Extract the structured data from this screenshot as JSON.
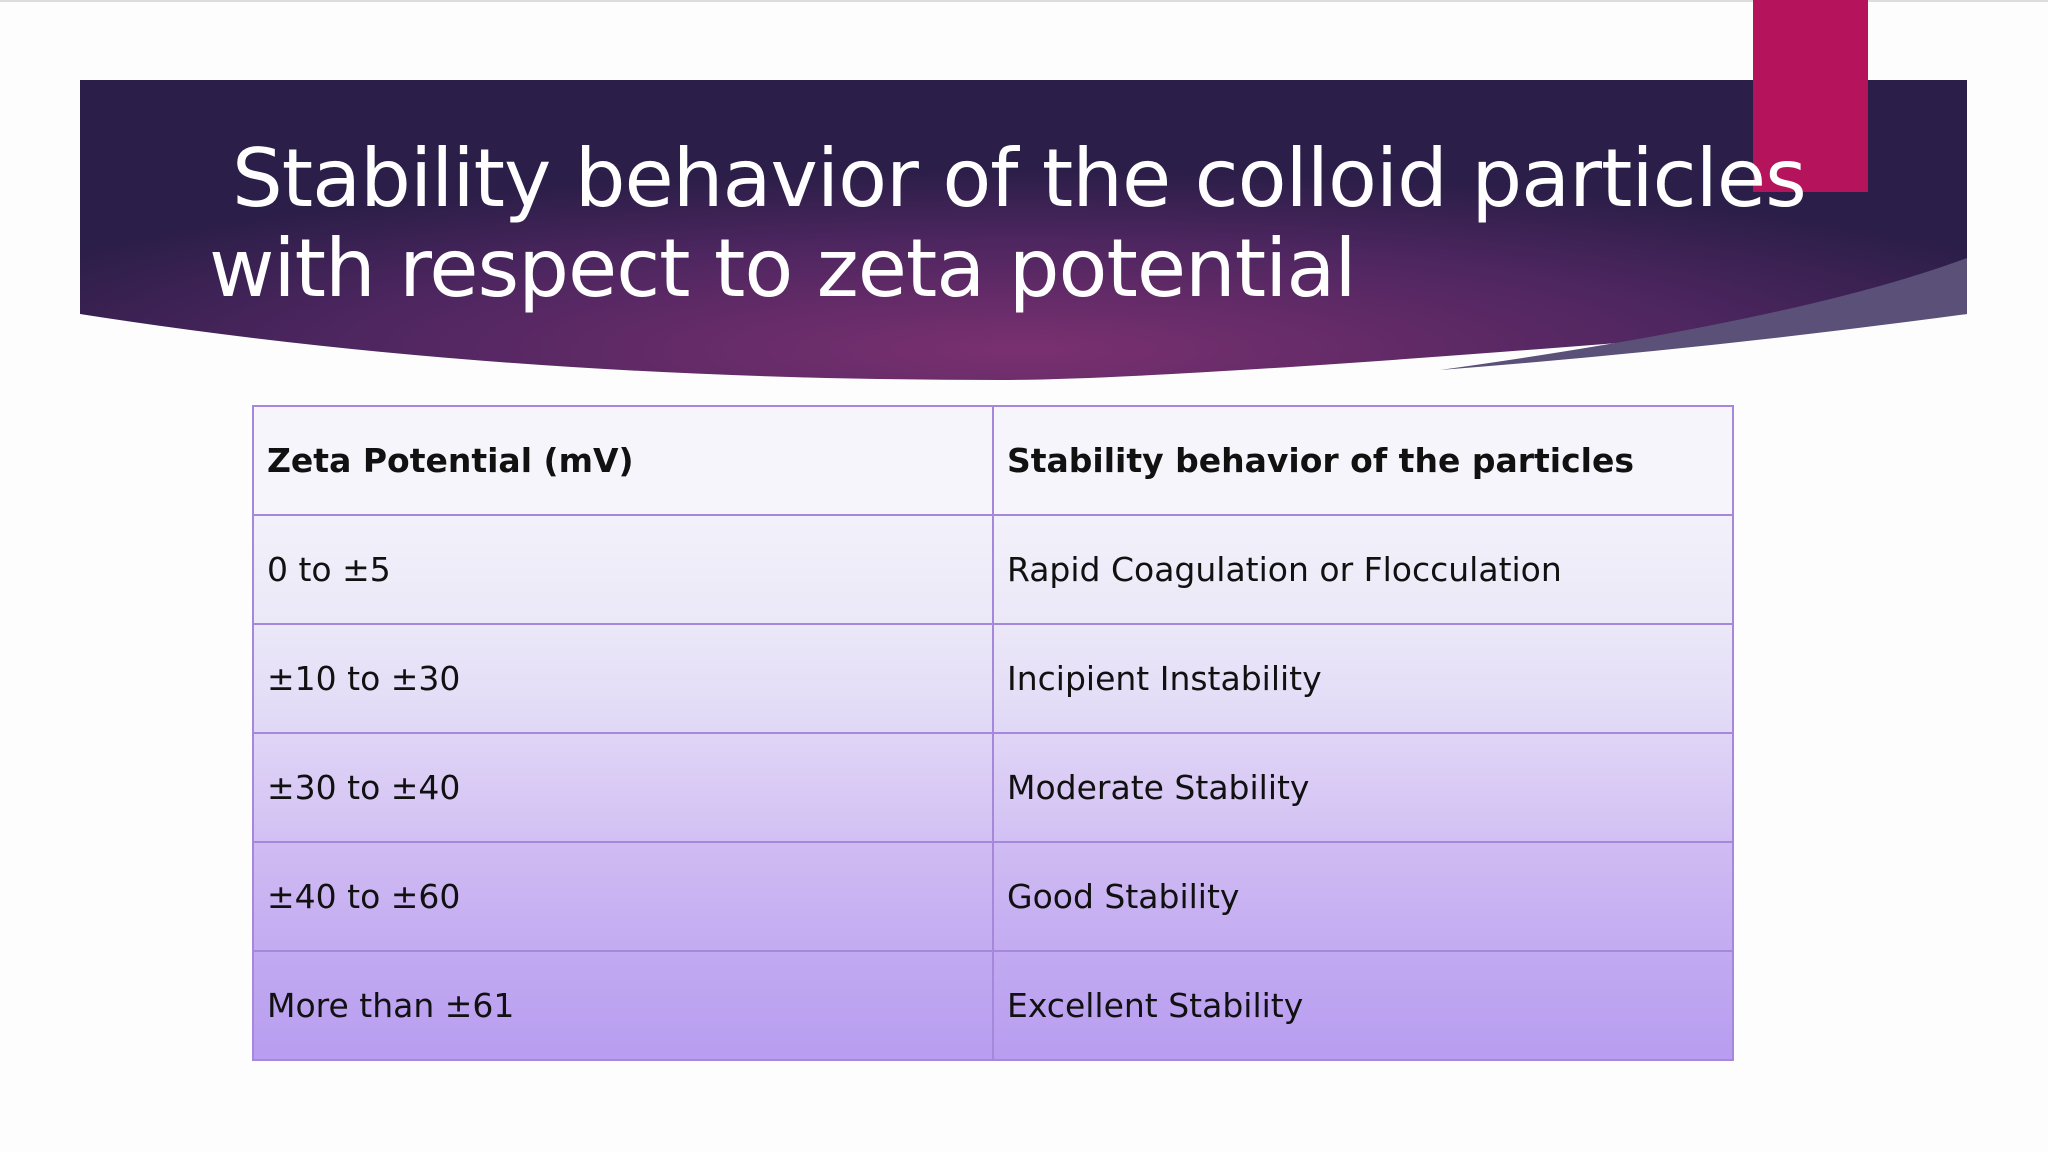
{
  "title": {
    "lines": [
      "Stability behavior of the colloid particles",
      "with respect to zeta potential"
    ]
  },
  "table": {
    "header": [
      "Zeta Potential (mV)",
      "Stability behavior of the particles"
    ],
    "rows": [
      [
        "0 to ±5",
        "Rapid Coagulation or Flocculation"
      ],
      [
        "±10 to ±30",
        "Incipient Instability"
      ],
      [
        "±30 to ±40",
        "Moderate Stability"
      ],
      [
        "±40 to ±60",
        "Good Stability"
      ],
      [
        "More than ±61",
        "Excellent Stability"
      ]
    ]
  }
}
